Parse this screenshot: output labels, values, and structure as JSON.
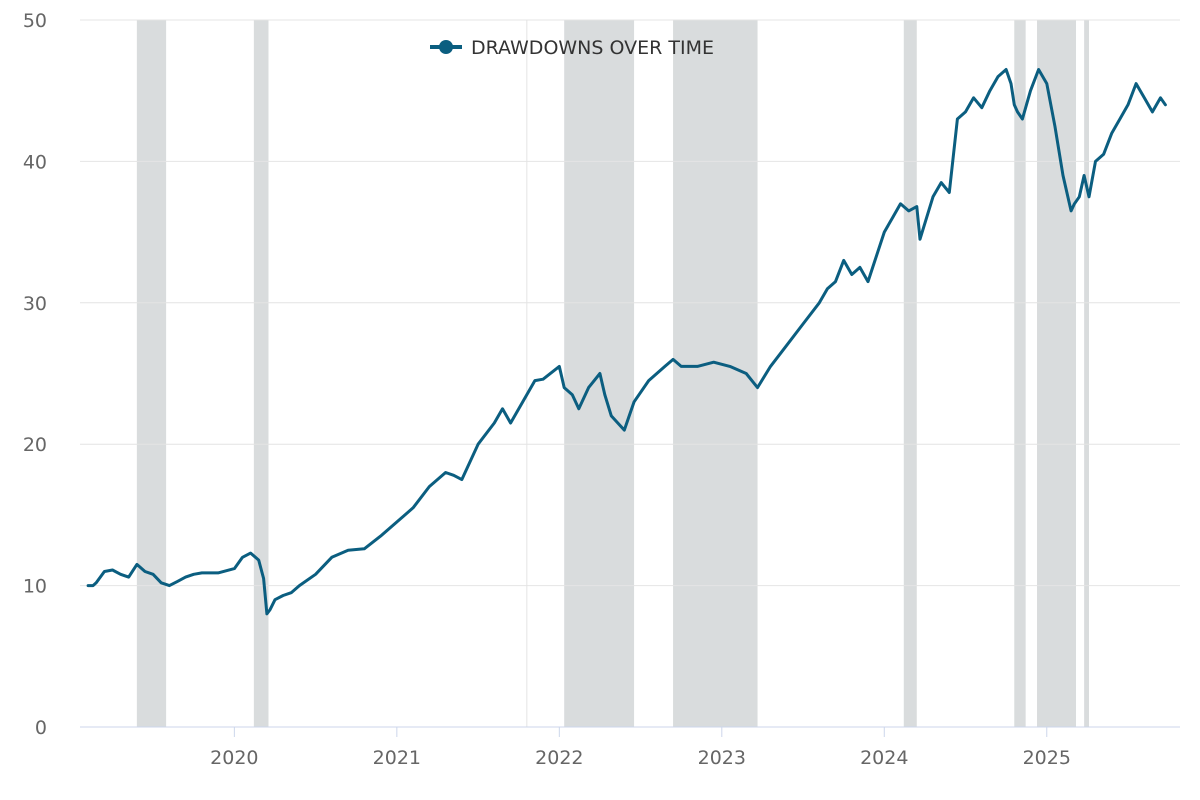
{
  "colors": {
    "series": "#0b5e80",
    "band": "#d9dcdd",
    "grid": "#e4e4e4",
    "axis": "#ccd6eb",
    "text": "#666666"
  },
  "chart_data": {
    "type": "line",
    "title": "",
    "xlabel": "",
    "ylabel": "",
    "legend": {
      "label": "DRAWDOWNS OVER TIME",
      "placement": "top-center"
    },
    "xlim": [
      2019.05,
      2025.82
    ],
    "ylim": [
      0,
      50
    ],
    "x_ticks": [
      2020,
      2021,
      2022,
      2023,
      2024,
      2025
    ],
    "x_tick_labels": [
      "2020",
      "2021",
      "2022",
      "2023",
      "2024",
      "2025"
    ],
    "y_ticks": [
      0,
      10,
      20,
      30,
      40,
      50
    ],
    "y_tick_labels": [
      "0",
      "10",
      "20",
      "30",
      "40",
      "50"
    ],
    "vertical_gridlines": [
      2021.8
    ],
    "grid": true,
    "drawdown_periods": [
      [
        2019.4,
        2019.58
      ],
      [
        2020.12,
        2020.21
      ],
      [
        2022.03,
        2022.46
      ],
      [
        2022.7,
        2023.22
      ],
      [
        2024.12,
        2024.2
      ],
      [
        2024.8,
        2024.87
      ],
      [
        2024.94,
        2025.18
      ],
      [
        2025.23,
        2025.26
      ]
    ],
    "series": [
      {
        "name": "DRAWDOWNS OVER TIME",
        "x": [
          2019.1,
          2019.13,
          2019.15,
          2019.2,
          2019.25,
          2019.3,
          2019.35,
          2019.4,
          2019.45,
          2019.5,
          2019.55,
          2019.6,
          2019.65,
          2019.7,
          2019.75,
          2019.8,
          2019.9,
          2020.0,
          2020.05,
          2020.1,
          2020.15,
          2020.18,
          2020.2,
          2020.22,
          2020.25,
          2020.3,
          2020.35,
          2020.4,
          2020.5,
          2020.6,
          2020.7,
          2020.8,
          2020.9,
          2021.0,
          2021.05,
          2021.1,
          2021.2,
          2021.3,
          2021.35,
          2021.4,
          2021.5,
          2021.6,
          2021.65,
          2021.7,
          2021.8,
          2021.85,
          2021.9,
          2022.0,
          2022.03,
          2022.08,
          2022.12,
          2022.18,
          2022.25,
          2022.28,
          2022.32,
          2022.36,
          2022.4,
          2022.43,
          2022.46,
          2022.55,
          2022.65,
          2022.7,
          2022.75,
          2022.85,
          2022.95,
          2023.05,
          2023.15,
          2023.22,
          2023.3,
          2023.4,
          2023.5,
          2023.6,
          2023.65,
          2023.7,
          2023.75,
          2023.8,
          2023.85,
          2023.9,
          2024.0,
          2024.05,
          2024.1,
          2024.15,
          2024.2,
          2024.22,
          2024.3,
          2024.35,
          2024.4,
          2024.45,
          2024.5,
          2024.55,
          2024.6,
          2024.65,
          2024.7,
          2024.75,
          2024.78,
          2024.8,
          2024.82,
          2024.85,
          2024.9,
          2024.95,
          2025.0,
          2025.05,
          2025.1,
          2025.15,
          2025.17,
          2025.2,
          2025.23,
          2025.26,
          2025.3,
          2025.35,
          2025.4,
          2025.45,
          2025.5,
          2025.55,
          2025.6,
          2025.65,
          2025.7,
          2025.73
        ],
        "values": [
          10.0,
          10.0,
          10.2,
          11.0,
          11.1,
          10.8,
          10.6,
          11.5,
          11.0,
          10.8,
          10.2,
          10.0,
          10.3,
          10.6,
          10.8,
          10.9,
          10.9,
          11.2,
          12.0,
          12.3,
          11.8,
          10.5,
          8.0,
          8.3,
          9.0,
          9.3,
          9.5,
          10.0,
          10.8,
          12.0,
          12.5,
          12.6,
          13.5,
          14.5,
          15.0,
          15.5,
          17.0,
          18.0,
          17.8,
          17.5,
          20.0,
          21.5,
          22.5,
          21.5,
          23.5,
          24.5,
          24.6,
          25.5,
          24.0,
          23.5,
          22.5,
          24.0,
          25.0,
          23.5,
          22.0,
          21.5,
          21.0,
          22.0,
          23.0,
          24.5,
          25.5,
          26.0,
          25.5,
          25.5,
          25.8,
          25.5,
          25.0,
          24.0,
          25.5,
          27.0,
          28.5,
          30.0,
          31.0,
          31.5,
          33.0,
          32.0,
          32.5,
          31.5,
          35.0,
          36.0,
          37.0,
          36.5,
          36.8,
          34.5,
          37.5,
          38.5,
          37.8,
          43.0,
          43.5,
          44.5,
          43.8,
          45.0,
          46.0,
          46.5,
          45.5,
          44.0,
          43.5,
          43.0,
          45.0,
          46.5,
          45.5,
          42.5,
          39.0,
          36.5,
          37.0,
          37.5,
          39.0,
          37.5,
          40.0,
          40.5,
          42.0,
          43.0,
          44.0,
          45.5,
          44.5,
          43.5,
          44.5,
          44.0
        ]
      }
    ]
  }
}
